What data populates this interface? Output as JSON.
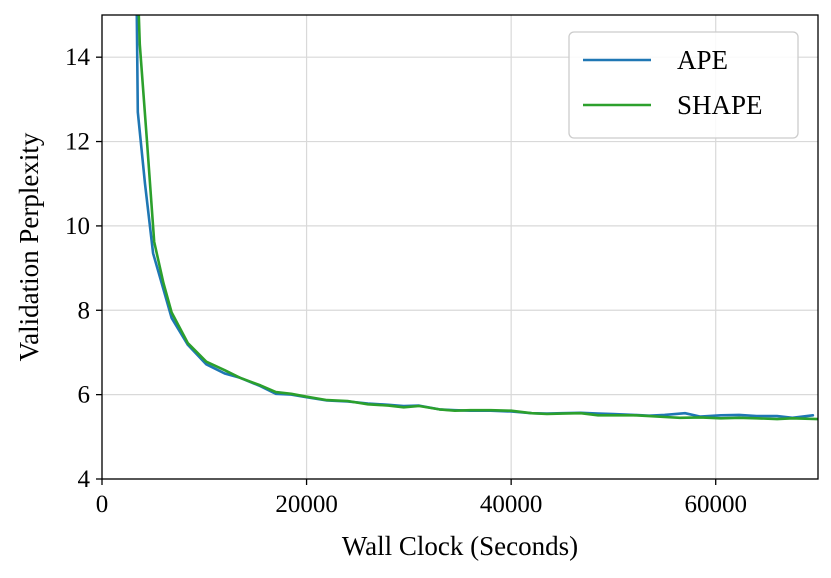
{
  "chart_data": {
    "type": "line",
    "xlabel": "Wall Clock (Seconds)",
    "ylabel": "Validation Perplexity",
    "xlim": [
      0,
      70000
    ],
    "ylim": [
      4,
      15
    ],
    "xticks": [
      0,
      20000,
      40000,
      60000
    ],
    "yticks": [
      4,
      6,
      8,
      10,
      12,
      14
    ],
    "grid": true,
    "legend_position": "top-right",
    "series": [
      {
        "name": "APE",
        "color": "#1f77b4",
        "points": [
          [
            3400,
            15.0
          ],
          [
            3500,
            12.7
          ],
          [
            4200,
            11.0
          ],
          [
            5000,
            9.35
          ],
          [
            6000,
            8.5
          ],
          [
            6800,
            7.82
          ],
          [
            8400,
            7.18
          ],
          [
            10200,
            6.72
          ],
          [
            12000,
            6.5
          ],
          [
            13500,
            6.4
          ],
          [
            15500,
            6.2
          ],
          [
            17000,
            6.02
          ],
          [
            18500,
            6.0
          ],
          [
            20000,
            5.94
          ],
          [
            22000,
            5.86
          ],
          [
            24000,
            5.84
          ],
          [
            26000,
            5.79
          ],
          [
            28000,
            5.76
          ],
          [
            29500,
            5.73
          ],
          [
            31000,
            5.74
          ],
          [
            33000,
            5.65
          ],
          [
            34500,
            5.63
          ],
          [
            36000,
            5.62
          ],
          [
            38000,
            5.62
          ],
          [
            40000,
            5.6
          ],
          [
            42000,
            5.56
          ],
          [
            43500,
            5.55
          ],
          [
            45000,
            5.56
          ],
          [
            46800,
            5.57
          ],
          [
            48500,
            5.55
          ],
          [
            50000,
            5.54
          ],
          [
            52000,
            5.52
          ],
          [
            53500,
            5.5
          ],
          [
            55000,
            5.52
          ],
          [
            57000,
            5.56
          ],
          [
            58500,
            5.48
          ],
          [
            60500,
            5.51
          ],
          [
            62300,
            5.52
          ],
          [
            64000,
            5.49
          ],
          [
            66000,
            5.49
          ],
          [
            67500,
            5.45
          ],
          [
            69500,
            5.51
          ]
        ]
      },
      {
        "name": "SHAPE",
        "color": "#2ca02c",
        "points": [
          [
            3600,
            15.0
          ],
          [
            3700,
            14.3
          ],
          [
            4400,
            12.0
          ],
          [
            5100,
            9.62
          ],
          [
            6000,
            8.65
          ],
          [
            6800,
            7.95
          ],
          [
            8400,
            7.22
          ],
          [
            10200,
            6.78
          ],
          [
            12000,
            6.58
          ],
          [
            13500,
            6.4
          ],
          [
            15500,
            6.22
          ],
          [
            17000,
            6.06
          ],
          [
            18500,
            6.02
          ],
          [
            20000,
            5.95
          ],
          [
            22000,
            5.87
          ],
          [
            24000,
            5.85
          ],
          [
            26000,
            5.77
          ],
          [
            28000,
            5.74
          ],
          [
            29500,
            5.7
          ],
          [
            31000,
            5.73
          ],
          [
            33000,
            5.65
          ],
          [
            34500,
            5.62
          ],
          [
            36000,
            5.63
          ],
          [
            38000,
            5.63
          ],
          [
            40000,
            5.62
          ],
          [
            42000,
            5.56
          ],
          [
            43500,
            5.54
          ],
          [
            45000,
            5.55
          ],
          [
            46800,
            5.56
          ],
          [
            48500,
            5.51
          ],
          [
            50000,
            5.51
          ],
          [
            52000,
            5.51
          ],
          [
            53500,
            5.49
          ],
          [
            55000,
            5.47
          ],
          [
            56500,
            5.45
          ],
          [
            58500,
            5.46
          ],
          [
            60500,
            5.44
          ],
          [
            62300,
            5.45
          ],
          [
            64000,
            5.44
          ],
          [
            66000,
            5.42
          ],
          [
            67500,
            5.44
          ],
          [
            70000,
            5.42
          ]
        ]
      }
    ]
  }
}
